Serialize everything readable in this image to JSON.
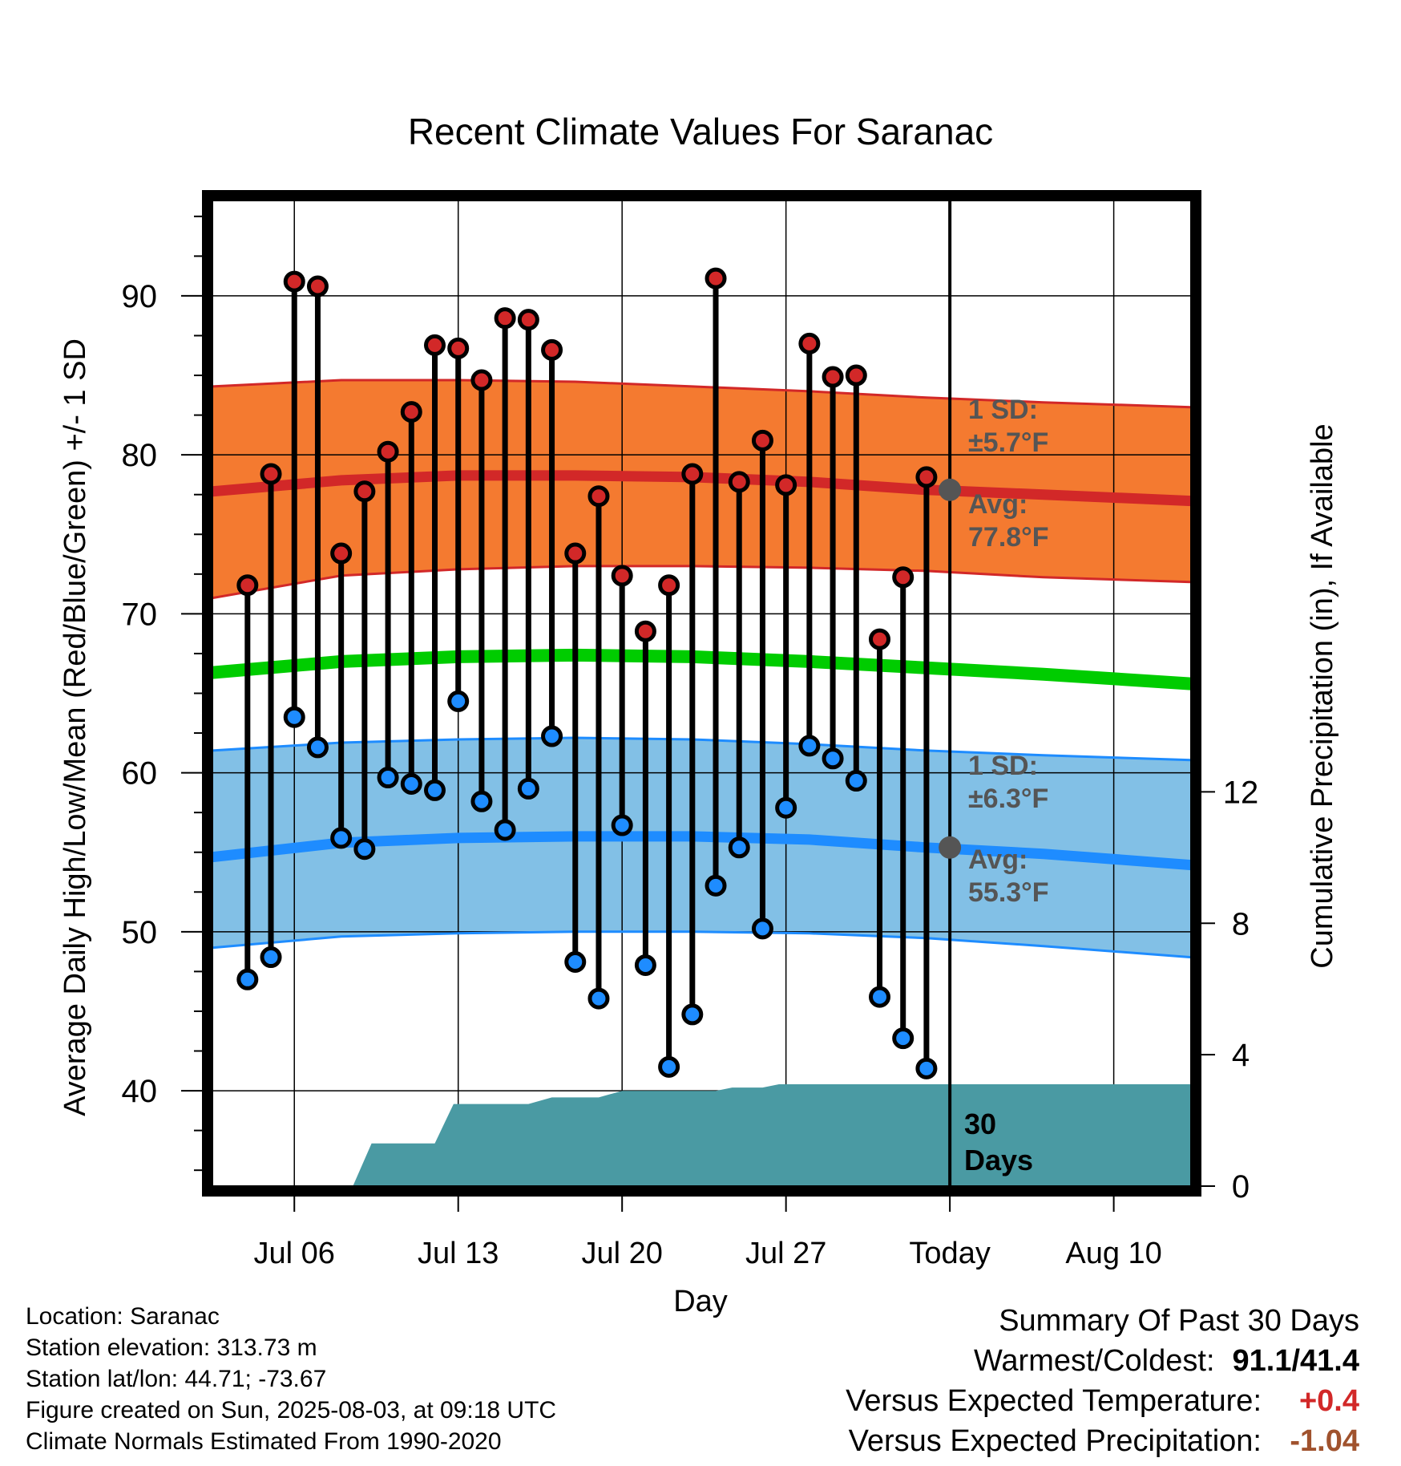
{
  "chart_data": {
    "type": "line",
    "title": "Recent Climate Values For Saranac",
    "xlabel": "Day",
    "ylabel": "Average Daily High/Low/Mean (Red/Blue/Green) +/- 1 SD",
    "y2label": "Cumulative Precipitation (in), If Available",
    "ylim": [
      34,
      96
    ],
    "y2lim": [
      0,
      30
    ],
    "xlim": [
      -0.5,
      41.3
    ],
    "yticks": [
      40,
      50,
      60,
      70,
      80,
      90
    ],
    "y2ticks": [
      0,
      4,
      8,
      12
    ],
    "xticks": [
      {
        "x": 3,
        "label": "Jul 06"
      },
      {
        "x": 10,
        "label": "Jul 13"
      },
      {
        "x": 17,
        "label": "Jul 20"
      },
      {
        "x": 24,
        "label": "Jul 27"
      },
      {
        "x": 31,
        "label": "Today"
      },
      {
        "x": 38,
        "label": "Aug 10"
      }
    ],
    "grid": true,
    "today_x": 31,
    "today_label": [
      "30",
      "Days"
    ],
    "days": [
      1,
      2,
      3,
      4,
      5,
      6,
      7,
      8,
      9,
      10,
      11,
      12,
      13,
      14,
      15,
      16,
      17,
      18,
      19,
      20,
      21,
      22,
      23,
      24,
      25,
      26,
      27,
      28,
      29,
      30
    ],
    "daily_high": [
      71.8,
      78.8,
      90.9,
      90.6,
      73.8,
      77.7,
      80.2,
      82.7,
      86.9,
      86.7,
      84.7,
      88.6,
      88.5,
      86.6,
      73.8,
      77.4,
      72.4,
      68.9,
      71.8,
      78.8,
      91.1,
      78.3,
      80.9,
      78.1,
      87.0,
      84.9,
      85.0,
      68.4,
      72.3,
      78.6
    ],
    "daily_low": [
      47.0,
      48.4,
      63.5,
      61.6,
      55.9,
      55.2,
      59.7,
      59.3,
      58.9,
      64.5,
      58.2,
      56.4,
      59.0,
      62.3,
      48.1,
      45.8,
      56.7,
      47.9,
      41.5,
      44.8,
      52.9,
      55.3,
      50.2,
      57.8,
      61.7,
      60.9,
      59.5,
      45.9,
      43.3,
      41.4
    ],
    "normal_x": [
      -0.5,
      5,
      10,
      15,
      20,
      25,
      30,
      35,
      41.3
    ],
    "normal_high": [
      77.7,
      78.4,
      78.7,
      78.7,
      78.6,
      78.3,
      77.8,
      77.5,
      77.1
    ],
    "normal_high_upper": [
      84.3,
      84.7,
      84.7,
      84.6,
      84.3,
      84.0,
      83.6,
      83.3,
      83.0
    ],
    "normal_high_lower": [
      71.0,
      72.4,
      72.8,
      73.0,
      73.0,
      72.9,
      72.7,
      72.3,
      72.0
    ],
    "normal_mean": [
      66.3,
      67.0,
      67.3,
      67.4,
      67.3,
      67.0,
      66.6,
      66.2,
      65.6
    ],
    "normal_low": [
      54.7,
      55.6,
      55.9,
      56.0,
      56.0,
      55.8,
      55.3,
      54.9,
      54.2
    ],
    "normal_low_upper": [
      61.4,
      61.9,
      62.1,
      62.2,
      62.1,
      61.8,
      61.4,
      61.1,
      60.8
    ],
    "normal_low_lower": [
      49.0,
      49.7,
      49.9,
      50.0,
      50.0,
      49.9,
      49.6,
      49.1,
      48.4
    ],
    "precip_x": [
      5.5,
      6.3,
      9.0,
      9.8,
      12.0,
      13.0,
      14.0,
      16.0,
      17.0,
      19.0,
      21.0,
      21.7,
      23.0,
      23.7,
      41.3
    ],
    "precip_cum": [
      0,
      1.3,
      1.3,
      2.5,
      2.5,
      2.5,
      2.7,
      2.7,
      2.9,
      2.9,
      2.9,
      3.0,
      3.0,
      3.1,
      3.1
    ],
    "annotations": {
      "high_sd_label": "1 SD:",
      "high_sd_value": "±5.7°F",
      "high_avg_label": "Avg:",
      "high_avg_value": "77.8°F",
      "low_sd_label": "1 SD:",
      "low_sd_value": "±6.3°F",
      "low_avg_label": "Avg:",
      "low_avg_value": "55.3°F"
    },
    "colors": {
      "high_band": "#f47a30",
      "high_line": "#d22828",
      "mean_line": "#00cc00",
      "low_band": "#82c0e6",
      "low_line": "#1e8cff",
      "precip": "#4a9aa3",
      "high_dot": "#d22828",
      "low_dot": "#1e8cff",
      "annotation_text": "#555555"
    }
  },
  "info": {
    "location": "Location: Saranac",
    "elevation": "Station elevation: 313.73 m",
    "latlon": "Station lat/lon: 44.71; -73.67",
    "created": "Figure created on Sun, 2025-08-03, at 09:18 UTC",
    "normals": "Climate Normals Estimated From 1990-2020"
  },
  "summary": {
    "title": "Summary Of Past 30 Days",
    "warm_cold_label": "Warmest/Coldest:",
    "warm_cold_value": "91.1/41.4",
    "temp_label": "Versus Expected Temperature:",
    "temp_value": "+0.4",
    "precip_label": "Versus Expected Precipitation:",
    "precip_value": "-1.04",
    "temp_color": "#d22828",
    "precip_color": "#a0522d"
  }
}
